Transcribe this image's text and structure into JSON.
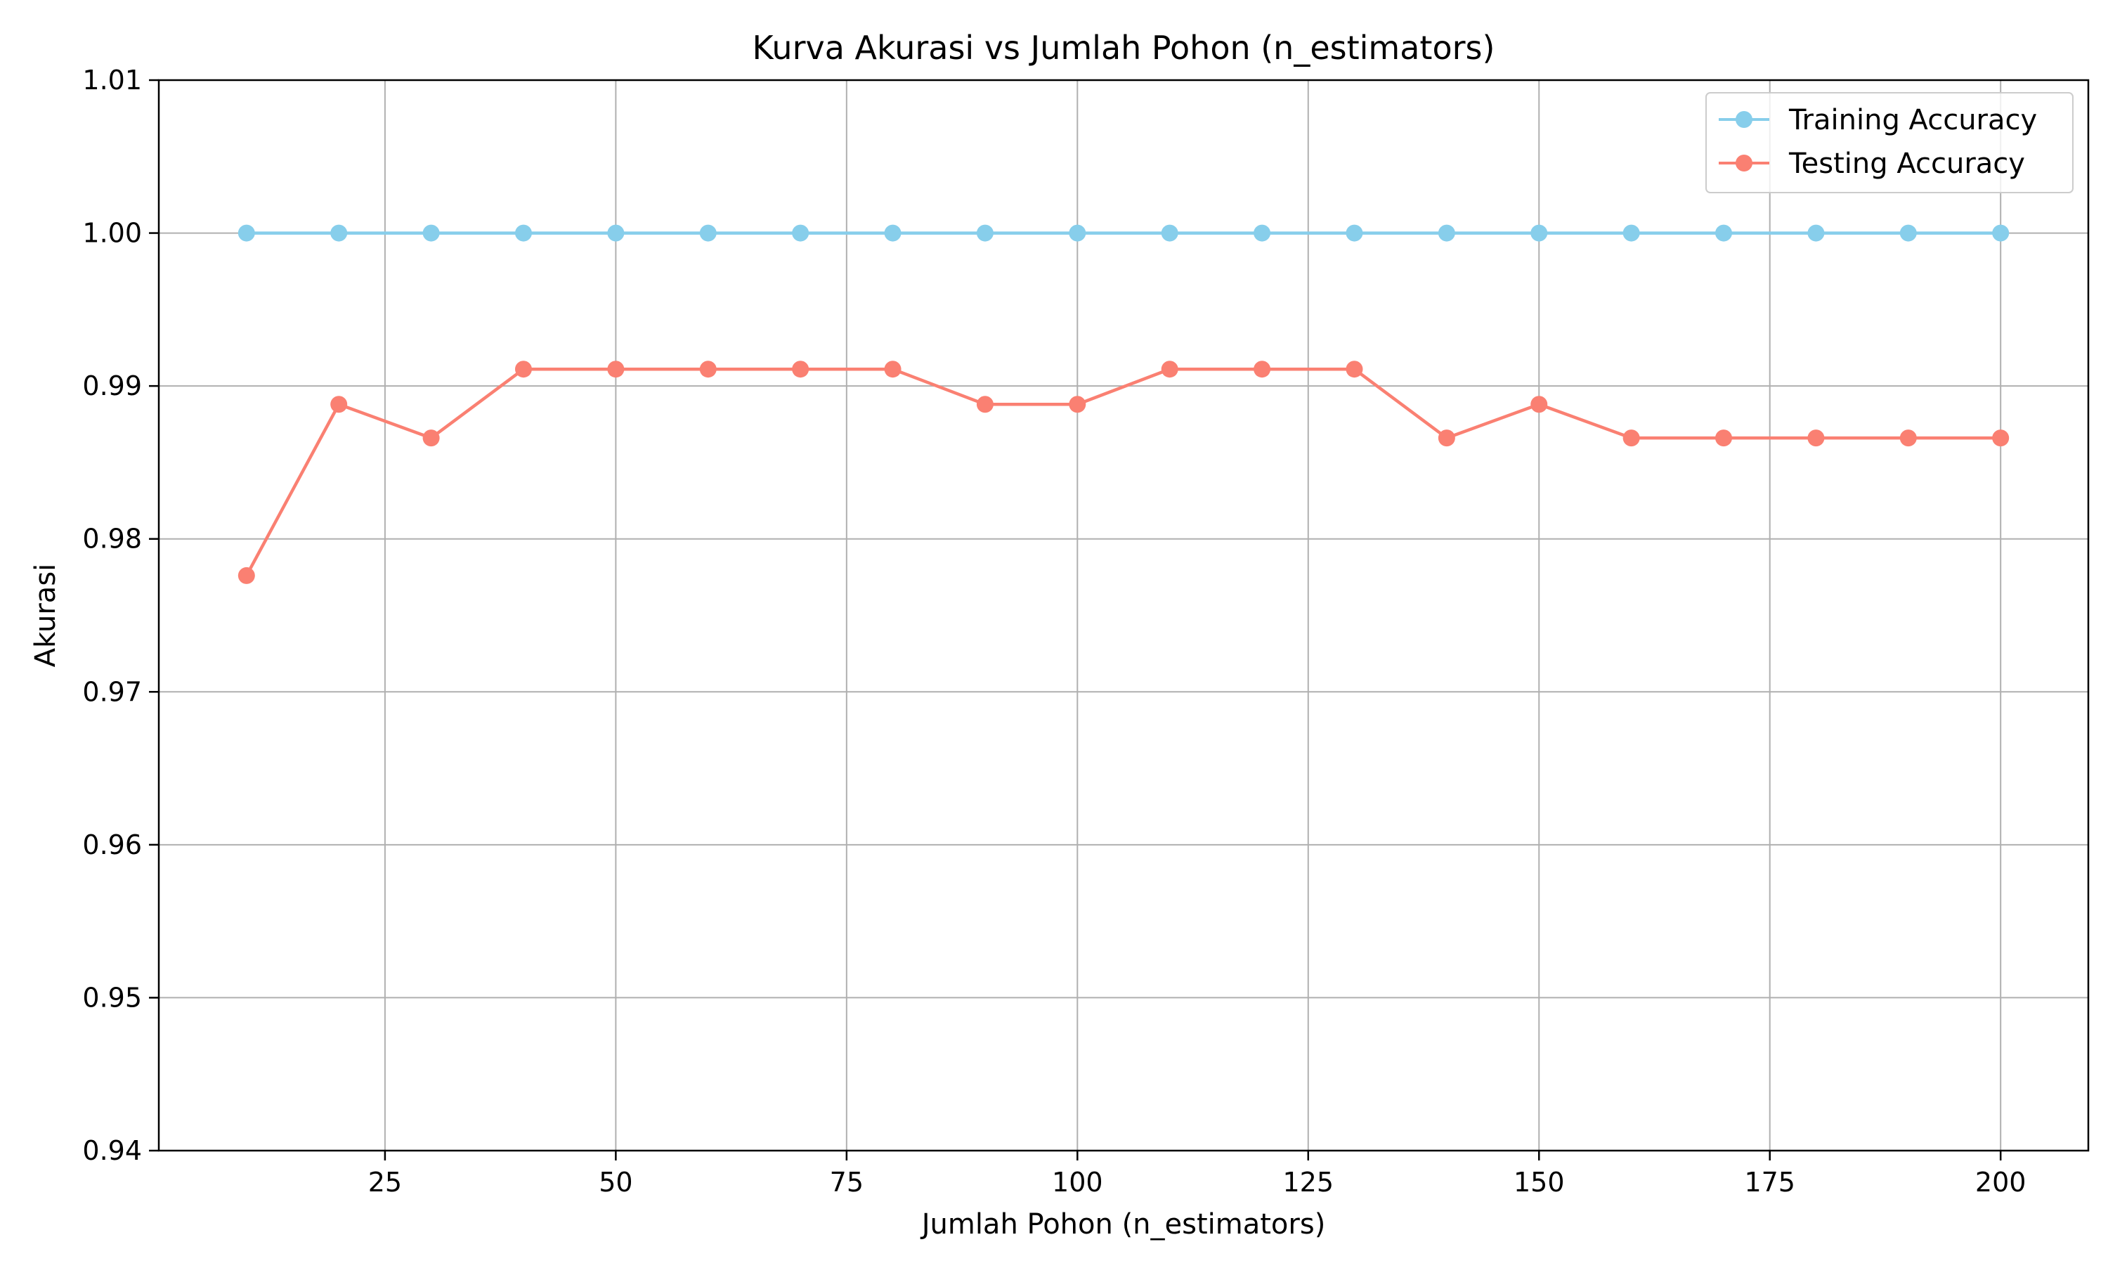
{
  "chart_data": {
    "type": "line",
    "title": "Kurva Akurasi vs Jumlah Pohon (n_estimators)",
    "xlabel": "Jumlah Pohon (n_estimators)",
    "ylabel": "Akurasi",
    "x": [
      10,
      20,
      30,
      40,
      50,
      60,
      70,
      80,
      90,
      100,
      110,
      120,
      130,
      140,
      150,
      160,
      170,
      180,
      190,
      200
    ],
    "xlim": [
      0.5,
      209.5
    ],
    "ylim": [
      0.94,
      1.01
    ],
    "xticks": [
      25,
      50,
      75,
      100,
      125,
      150,
      175,
      200
    ],
    "xtick_labels": [
      "25",
      "50",
      "75",
      "100",
      "125",
      "150",
      "175",
      "200"
    ],
    "yticks": [
      0.94,
      0.95,
      0.96,
      0.97,
      0.98,
      0.99,
      1.0,
      1.01
    ],
    "ytick_labels": [
      "0.94",
      "0.95",
      "0.96",
      "0.97",
      "0.98",
      "0.99",
      "1.00",
      "1.01"
    ],
    "grid": true,
    "legend_position": "top-right",
    "series": [
      {
        "name": "Training Accuracy",
        "color": "#87CEEB",
        "marker": "circle",
        "values": [
          1.0,
          1.0,
          1.0,
          1.0,
          1.0,
          1.0,
          1.0,
          1.0,
          1.0,
          1.0,
          1.0,
          1.0,
          1.0,
          1.0,
          1.0,
          1.0,
          1.0,
          1.0,
          1.0,
          1.0
        ]
      },
      {
        "name": "Testing Accuracy",
        "color": "#FA8072",
        "marker": "circle",
        "values": [
          0.9776,
          0.9888,
          0.9866,
          0.9911,
          0.9911,
          0.9911,
          0.9911,
          0.9911,
          0.9888,
          0.9888,
          0.9911,
          0.9911,
          0.9911,
          0.9866,
          0.9888,
          0.9866,
          0.9866,
          0.9866,
          0.9866,
          0.9866
        ]
      }
    ]
  }
}
